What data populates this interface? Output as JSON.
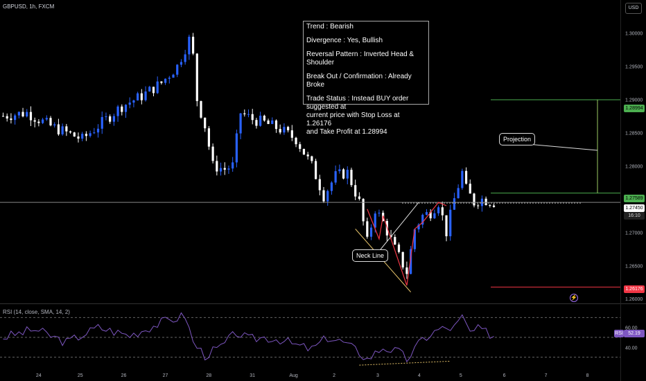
{
  "header": {
    "symbol": "GBPUSD, 1h, FXCM",
    "currency": "USD"
  },
  "info_box": {
    "trend": "Trend : Bearish",
    "divergence": "Divergence : Yes, Bullish",
    "pattern": "Reversal Pattern : Inverted Head & Shoulder",
    "breakout": "Break Out / Confirmation : Already Broke",
    "status": "Trade Status : Instead BUY order suggested at\ncurrent price with Stop Loss at 1.26176\nand Take Profit at 1.28994"
  },
  "annotations": {
    "projection": "Projection",
    "neck_line": "Neck Line"
  },
  "price_tags": {
    "take_profit": "1.28994",
    "entry": "1.27589",
    "current": "1.27450",
    "countdown": "16:10",
    "stop_loss": "1.26176",
    "rsi": "52.19",
    "rsi_label": "RSI"
  },
  "rsi_title": "RSI (14, close, SMA, 14, 2)",
  "colors": {
    "bull": "#2962ff",
    "bear": "#ffffff",
    "tp": "#4caf50",
    "sl": "#f23645",
    "rsi": "#7e57c2",
    "neck": "#cccccc"
  },
  "chart_data": {
    "type": "candlestick",
    "title": "GBPUSD, 1h, FXCM",
    "price_axis": {
      "ylim": [
        1.2595,
        1.3035
      ],
      "ticks": [
        "1.30000",
        "1.29500",
        "1.29000",
        "1.28500",
        "1.28000",
        "1.27500",
        "1.27000",
        "1.26500",
        "1.26000"
      ],
      "tick_values": [
        1.3,
        1.295,
        1.29,
        1.285,
        1.28,
        1.275,
        1.27,
        1.265,
        1.26
      ]
    },
    "time_axis": {
      "labels": [
        "24",
        "25",
        "26",
        "27",
        "28",
        "31",
        "Aug",
        "2",
        "3",
        "4",
        "5",
        "6",
        "7",
        "8"
      ],
      "label_index": [
        9,
        19.5,
        30.5,
        41,
        52,
        63,
        73,
        84,
        95,
        105.5,
        116,
        127,
        137.5,
        148
      ]
    },
    "candle_count": 130,
    "close_path": [
      [
        0,
        1.2875
      ],
      [
        6,
        1.288
      ],
      [
        12,
        1.286
      ],
      [
        20,
        1.284
      ],
      [
        26,
        1.287
      ],
      [
        30,
        1.289
      ],
      [
        35,
        1.2905
      ],
      [
        40,
        1.2925
      ],
      [
        44,
        1.295
      ],
      [
        47,
        1.299
      ],
      [
        48,
        1.2965
      ],
      [
        49,
        1.29
      ],
      [
        51,
        1.286
      ],
      [
        53,
        1.28
      ],
      [
        56,
        1.2795
      ],
      [
        58,
        1.28
      ],
      [
        60,
        1.288
      ],
      [
        63,
        1.287
      ],
      [
        66,
        1.2865
      ],
      [
        70,
        1.2855
      ],
      [
        74,
        1.284
      ],
      [
        78,
        1.28
      ],
      [
        81,
        1.2755
      ],
      [
        84,
        1.2785
      ],
      [
        87,
        1.279
      ],
      [
        90,
        1.2745
      ],
      [
        92,
        1.2685
      ],
      [
        94,
        1.2735
      ],
      [
        96,
        1.2715
      ],
      [
        99,
        1.2675
      ],
      [
        102,
        1.264
      ],
      [
        104,
        1.2705
      ],
      [
        106,
        1.2725
      ],
      [
        108,
        1.273
      ],
      [
        110,
        1.2745
      ],
      [
        112,
        1.27
      ],
      [
        114,
        1.275
      ],
      [
        116,
        1.279
      ],
      [
        117,
        1.2765
      ],
      [
        119,
        1.2745
      ],
      [
        121,
        1.275
      ],
      [
        124,
        1.2745
      ]
    ],
    "levels": [
      {
        "name": "take-profit",
        "value": 1.28994
      },
      {
        "name": "entry",
        "value": 1.27589
      },
      {
        "name": "neck-line",
        "value": 1.2745
      },
      {
        "name": "stop-loss",
        "value": 1.26176
      }
    ],
    "rsi": {
      "ylim": [
        20,
        80
      ],
      "ticks": [
        "60.00",
        "40.00"
      ],
      "tick_values": [
        60,
        40
      ],
      "bands": [
        70,
        50,
        30
      ],
      "path": [
        [
          0,
          50
        ],
        [
          8,
          58
        ],
        [
          16,
          45
        ],
        [
          24,
          60
        ],
        [
          32,
          52
        ],
        [
          40,
          65
        ],
        [
          46,
          72
        ],
        [
          48,
          45
        ],
        [
          51,
          32
        ],
        [
          55,
          40
        ],
        [
          59,
          55
        ],
        [
          62,
          48
        ],
        [
          66,
          50
        ],
        [
          70,
          48
        ],
        [
          74,
          42
        ],
        [
          78,
          38
        ],
        [
          82,
          50
        ],
        [
          86,
          45
        ],
        [
          90,
          35
        ],
        [
          92,
          28
        ],
        [
          96,
          40
        ],
        [
          100,
          35
        ],
        [
          102,
          28
        ],
        [
          106,
          48
        ],
        [
          110,
          58
        ],
        [
          114,
          60
        ],
        [
          116,
          70
        ],
        [
          118,
          55
        ],
        [
          120,
          58
        ],
        [
          124,
          52
        ]
      ]
    }
  }
}
